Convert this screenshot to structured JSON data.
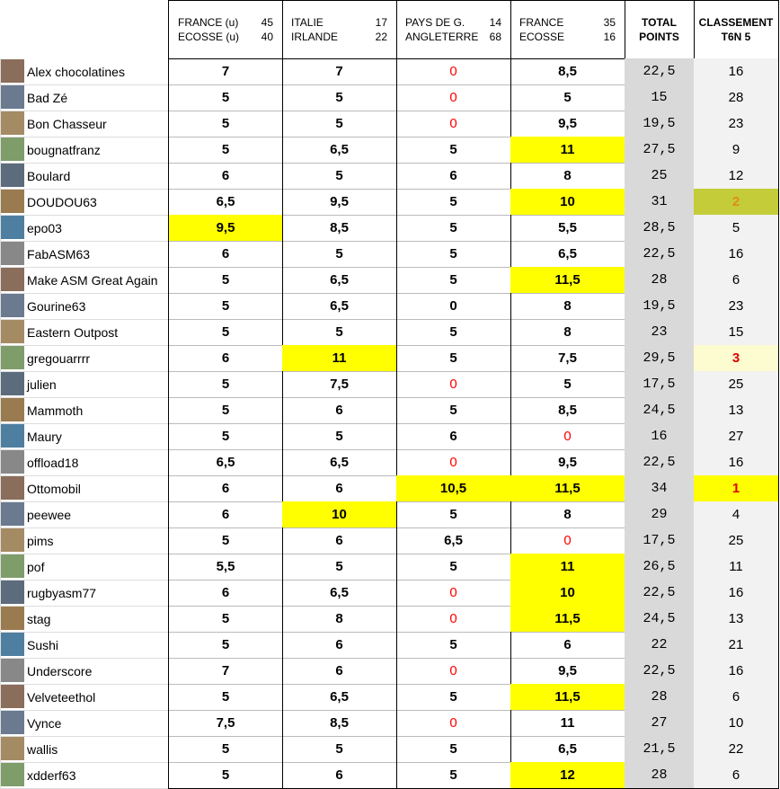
{
  "header": {
    "matches": [
      {
        "lines": [
          {
            "team": "FRANCE (u)",
            "score": 45
          },
          {
            "team": "ECOSSE (u)",
            "score": 40
          }
        ]
      },
      {
        "lines": [
          {
            "team": "ITALIE",
            "score": 17
          },
          {
            "team": "IRLANDE",
            "score": 22
          }
        ]
      },
      {
        "lines": [
          {
            "team": "PAYS DE G.",
            "score": 14
          },
          {
            "team": "ANGLETERRE",
            "score": 68
          }
        ]
      },
      {
        "lines": [
          {
            "team": "FRANCE",
            "score": 35
          },
          {
            "team": "ECOSSE",
            "score": 16
          }
        ]
      }
    ],
    "total": [
      "TOTAL",
      "POINTS"
    ],
    "rank": [
      "CLASSEMENT",
      "T6N 5"
    ]
  },
  "highlight_color": "#ffff00",
  "zero_color": "#ff0000",
  "rows": [
    {
      "name": "Alex chocolatines",
      "cells": [
        "7",
        "7",
        "0",
        "8,5",
        "22,5",
        "16"
      ],
      "red": [
        2
      ]
    },
    {
      "name": "Bad Zé",
      "cells": [
        "5",
        "5",
        "0",
        "5",
        "15",
        "28"
      ],
      "red": [
        2
      ]
    },
    {
      "name": "Bon Chasseur",
      "cells": [
        "5",
        "5",
        "0",
        "9,5",
        "19,5",
        "23"
      ],
      "red": [
        2
      ]
    },
    {
      "name": "bougnatfranz",
      "cells": [
        "5",
        "6,5",
        "5",
        "11",
        "27,5",
        "9"
      ],
      "hl": [
        3
      ]
    },
    {
      "name": "Boulard",
      "cells": [
        "6",
        "5",
        "6",
        "8",
        "25",
        "12"
      ]
    },
    {
      "name": "DOUDOU63",
      "cells": [
        "6,5",
        "9,5",
        "5",
        "10",
        "31",
        "2"
      ],
      "hl": [
        3
      ],
      "rank_bg": "#c4cc3a",
      "rank_fg": "#e08a1a"
    },
    {
      "name": "epo03",
      "cells": [
        "9,5",
        "8,5",
        "5",
        "5,5",
        "28,5",
        "5"
      ],
      "hl": [
        0
      ]
    },
    {
      "name": "FabASM63",
      "cells": [
        "6",
        "5",
        "5",
        "6,5",
        "22,5",
        "16"
      ]
    },
    {
      "name": "Make ASM Great Again",
      "cells": [
        "5",
        "6,5",
        "5",
        "11,5",
        "28",
        "6"
      ],
      "hl": [
        3
      ]
    },
    {
      "name": "Gourine63",
      "cells": [
        "5",
        "6,5",
        "0",
        "8",
        "19,5",
        "23"
      ]
    },
    {
      "name": "Eastern Outpost",
      "cells": [
        "5",
        "5",
        "5",
        "8",
        "23",
        "15"
      ]
    },
    {
      "name": "gregouarrrr",
      "cells": [
        "6",
        "11",
        "5",
        "7,5",
        "29,5",
        "3"
      ],
      "hl": [
        1
      ],
      "rank_bg": "#fdfbd0",
      "rank_fg": "#e00000"
    },
    {
      "name": "julien",
      "cells": [
        "5",
        "7,5",
        "0",
        "5",
        "17,5",
        "25"
      ],
      "red": [
        2
      ]
    },
    {
      "name": "Mammoth",
      "cells": [
        "5",
        "6",
        "5",
        "8,5",
        "24,5",
        "13"
      ]
    },
    {
      "name": "Maury",
      "cells": [
        "5",
        "5",
        "6",
        "0",
        "16",
        "27"
      ],
      "red": [
        3
      ]
    },
    {
      "name": "offload18",
      "cells": [
        "6,5",
        "6,5",
        "0",
        "9,5",
        "22,5",
        "16"
      ],
      "red": [
        2
      ]
    },
    {
      "name": "Ottomobil",
      "cells": [
        "6",
        "6",
        "10,5",
        "11,5",
        "34",
        "1"
      ],
      "hl": [
        2,
        3
      ],
      "rank_bg": "#ffff00",
      "rank_fg": "#e00000"
    },
    {
      "name": "peewee",
      "cells": [
        "6",
        "10",
        "5",
        "8",
        "29",
        "4"
      ],
      "hl": [
        1
      ]
    },
    {
      "name": "pims",
      "cells": [
        "5",
        "6",
        "6,5",
        "0",
        "17,5",
        "25"
      ],
      "red": [
        3
      ]
    },
    {
      "name": "pof",
      "cells": [
        "5,5",
        "5",
        "5",
        "11",
        "26,5",
        "11"
      ],
      "hl": [
        3
      ]
    },
    {
      "name": "rugbyasm77",
      "cells": [
        "6",
        "6,5",
        "0",
        "10",
        "22,5",
        "16"
      ],
      "hl": [
        3
      ],
      "red": [
        2
      ]
    },
    {
      "name": "stag",
      "cells": [
        "5",
        "8",
        "0",
        "11,5",
        "24,5",
        "13"
      ],
      "hl": [
        3
      ],
      "red": [
        2
      ]
    },
    {
      "name": "Sushi",
      "cells": [
        "5",
        "6",
        "5",
        "6",
        "22",
        "21"
      ]
    },
    {
      "name": "Underscore",
      "cells": [
        "7",
        "6",
        "0",
        "9,5",
        "22,5",
        "16"
      ],
      "red": [
        2
      ]
    },
    {
      "name": "Velveteethol",
      "cells": [
        "5",
        "6,5",
        "5",
        "11,5",
        "28",
        "6"
      ],
      "hl": [
        3
      ]
    },
    {
      "name": "Vynce",
      "cells": [
        "7,5",
        "8,5",
        "0",
        "11",
        "27",
        "10"
      ],
      "red": [
        2
      ]
    },
    {
      "name": "wallis",
      "cells": [
        "5",
        "5",
        "5",
        "6,5",
        "21,5",
        "22"
      ]
    },
    {
      "name": "xdderf63",
      "cells": [
        "5",
        "6",
        "5",
        "12",
        "28",
        "6"
      ],
      "hl": [
        3
      ]
    }
  ]
}
